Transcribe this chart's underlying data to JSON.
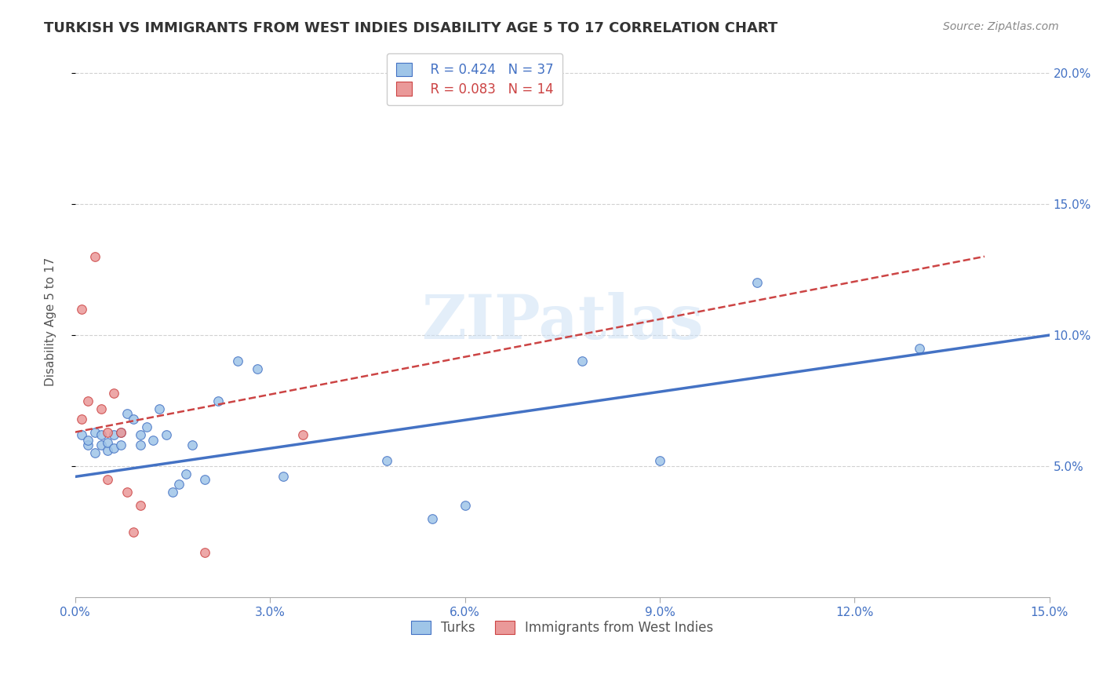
{
  "title": "TURKISH VS IMMIGRANTS FROM WEST INDIES DISABILITY AGE 5 TO 17 CORRELATION CHART",
  "source": "Source: ZipAtlas.com",
  "ylabel": "Disability Age 5 to 17",
  "xlim": [
    0.0,
    0.15
  ],
  "ylim": [
    0.0,
    0.21
  ],
  "ytick_positions": [
    0.05,
    0.1,
    0.15,
    0.2
  ],
  "ytick_labels": [
    "5.0%",
    "10.0%",
    "15.0%",
    "20.0%"
  ],
  "xtick_positions": [
    0.0,
    0.03,
    0.06,
    0.09,
    0.12,
    0.15
  ],
  "legend_r1": "R = 0.424",
  "legend_n1": "N = 37",
  "legend_r2": "R = 0.083",
  "legend_n2": "N = 14",
  "legend_label1": "Turks",
  "legend_label2": "Immigrants from West Indies",
  "color_blue_fill": "#9fc5e8",
  "color_pink_fill": "#ea9999",
  "color_blue_edge": "#4472c4",
  "color_pink_edge": "#cc4444",
  "color_blue_line": "#4472c4",
  "color_pink_line": "#cc4444",
  "watermark": "ZIPatlas",
  "turks_x": [
    0.001,
    0.002,
    0.002,
    0.003,
    0.003,
    0.004,
    0.004,
    0.005,
    0.005,
    0.006,
    0.006,
    0.007,
    0.007,
    0.008,
    0.009,
    0.01,
    0.01,
    0.011,
    0.012,
    0.013,
    0.014,
    0.015,
    0.016,
    0.017,
    0.018,
    0.02,
    0.022,
    0.025,
    0.028,
    0.032,
    0.048,
    0.055,
    0.06,
    0.078,
    0.09,
    0.105,
    0.13
  ],
  "turks_y": [
    0.062,
    0.058,
    0.06,
    0.055,
    0.063,
    0.058,
    0.062,
    0.056,
    0.059,
    0.062,
    0.057,
    0.058,
    0.063,
    0.07,
    0.068,
    0.058,
    0.062,
    0.065,
    0.06,
    0.072,
    0.062,
    0.04,
    0.043,
    0.047,
    0.058,
    0.045,
    0.075,
    0.09,
    0.087,
    0.046,
    0.052,
    0.03,
    0.035,
    0.09,
    0.052,
    0.12,
    0.095
  ],
  "west_indies_x": [
    0.001,
    0.001,
    0.002,
    0.003,
    0.004,
    0.005,
    0.005,
    0.006,
    0.007,
    0.008,
    0.009,
    0.01,
    0.02,
    0.035
  ],
  "west_indies_y": [
    0.068,
    0.11,
    0.075,
    0.13,
    0.072,
    0.063,
    0.045,
    0.078,
    0.063,
    0.04,
    0.025,
    0.035,
    0.017,
    0.062
  ],
  "turks_size": 70,
  "west_indies_size": 70,
  "blue_line_x": [
    0.0,
    0.15
  ],
  "blue_line_y": [
    0.046,
    0.1
  ],
  "pink_line_x": [
    0.0,
    0.14
  ],
  "pink_line_y": [
    0.063,
    0.13
  ]
}
